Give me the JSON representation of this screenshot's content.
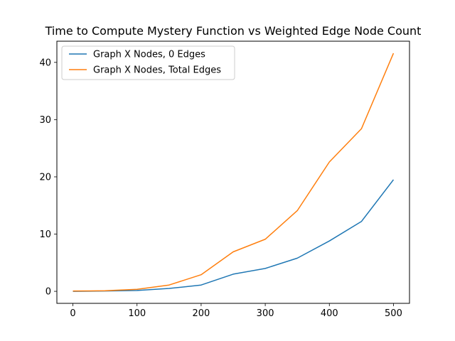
{
  "chart_data": {
    "type": "line",
    "title": "Time to Compute Mystery Function vs Weighted Edge Node Count",
    "xlabel": "",
    "ylabel": "",
    "x": [
      0,
      50,
      100,
      150,
      200,
      250,
      300,
      350,
      400,
      450,
      500
    ],
    "xlim": [
      -25,
      525
    ],
    "ylim": [
      -2.1,
      43.7
    ],
    "xticks": [
      0,
      100,
      200,
      300,
      400,
      500
    ],
    "yticks": [
      0,
      10,
      20,
      30,
      40
    ],
    "grid": false,
    "legend_position": "top-left",
    "series": [
      {
        "name": "Graph X Nodes, 0 Edges",
        "color": "#1f77b4",
        "values": [
          0.0,
          0.05,
          0.15,
          0.5,
          1.1,
          3.0,
          4.0,
          5.8,
          8.8,
          12.2,
          19.5
        ]
      },
      {
        "name": "Graph X Nodes, Total Edges",
        "color": "#ff7f0e",
        "values": [
          0.05,
          0.1,
          0.35,
          1.1,
          2.9,
          6.9,
          9.1,
          14.1,
          22.6,
          28.4,
          41.6
        ]
      }
    ]
  }
}
